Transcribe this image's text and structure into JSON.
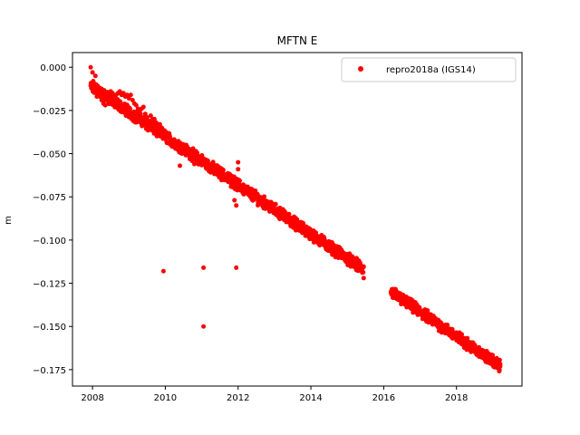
{
  "chart_data": {
    "type": "scatter",
    "title": "MFTN E",
    "xlabel": "",
    "ylabel": "m",
    "xlim": [
      2007.45,
      2019.8
    ],
    "ylim": [
      -0.1845,
      0.0085
    ],
    "xticks": [
      2008,
      2010,
      2012,
      2014,
      2016,
      2018
    ],
    "yticks": [
      0.0,
      -0.025,
      -0.05,
      -0.075,
      -0.1,
      -0.125,
      -0.15,
      -0.175
    ],
    "ytick_labels": [
      "0.000",
      "−0.025",
      "−0.050",
      "−0.075",
      "−0.100",
      "−0.125",
      "−0.150",
      "−0.175"
    ],
    "grid": false,
    "legend_position": "top-right",
    "colors": {
      "series": "#ff0000",
      "axes": "#000000",
      "background": "#ffffff"
    },
    "series": [
      {
        "name": "repro2018a (IGS14)",
        "trend_segments": [
          {
            "x_start": 2007.95,
            "x_end": 2015.45,
            "y_start": -0.011,
            "y_end": -0.117
          },
          {
            "x_start": 2016.2,
            "x_end": 2019.2,
            "y_start": -0.13,
            "y_end": -0.173
          }
        ],
        "points": [
          [
            2007.95,
            0.0
          ],
          [
            2007.98,
            -0.01
          ],
          [
            2008.0,
            -0.013
          ],
          [
            2008.02,
            -0.008
          ],
          [
            2008.05,
            -0.012
          ],
          [
            2008.08,
            -0.005
          ],
          [
            2008.1,
            -0.01
          ],
          [
            2008.12,
            -0.017
          ],
          [
            2008.15,
            -0.011
          ],
          [
            2008.18,
            -0.015
          ],
          [
            2008.2,
            -0.013
          ],
          [
            2008.25,
            -0.019
          ],
          [
            2008.3,
            -0.021
          ],
          [
            2008.35,
            -0.022
          ],
          [
            2008.4,
            -0.019
          ],
          [
            2008.45,
            -0.02
          ],
          [
            2008.5,
            -0.014
          ],
          [
            2008.55,
            -0.015
          ],
          [
            2008.6,
            -0.017
          ],
          [
            2008.65,
            -0.016
          ],
          [
            2008.7,
            -0.015
          ],
          [
            2008.75,
            -0.014
          ],
          [
            2008.8,
            -0.016
          ],
          [
            2008.85,
            -0.015
          ],
          [
            2008.9,
            -0.017
          ],
          [
            2008.95,
            -0.016
          ],
          [
            2009.0,
            -0.018
          ],
          [
            2009.05,
            -0.016
          ],
          [
            2009.1,
            -0.019
          ],
          [
            2009.15,
            -0.021
          ],
          [
            2009.2,
            -0.022
          ],
          [
            2009.25,
            -0.024
          ],
          [
            2009.3,
            -0.025
          ],
          [
            2009.35,
            -0.024
          ],
          [
            2009.4,
            -0.023
          ],
          [
            2009.45,
            -0.027
          ],
          [
            2009.5,
            -0.029
          ],
          [
            2009.55,
            -0.031
          ],
          [
            2009.6,
            -0.028
          ],
          [
            2009.65,
            -0.03
          ],
          [
            2009.7,
            -0.03
          ],
          [
            2009.75,
            -0.032
          ],
          [
            2009.8,
            -0.034
          ],
          [
            2009.85,
            -0.033
          ],
          [
            2009.9,
            -0.035
          ],
          [
            2009.95,
            -0.037
          ],
          [
            2010.0,
            -0.038
          ],
          [
            2010.05,
            -0.04
          ],
          [
            2010.1,
            -0.039
          ],
          [
            2010.15,
            -0.043
          ],
          [
            2010.2,
            -0.044
          ],
          [
            2010.3,
            -0.045
          ],
          [
            2010.4,
            -0.046
          ],
          [
            2010.5,
            -0.047
          ],
          [
            2010.6,
            -0.049
          ],
          [
            2010.7,
            -0.052
          ],
          [
            2010.8,
            -0.053
          ],
          [
            2010.9,
            -0.054
          ],
          [
            2011.0,
            -0.055
          ],
          [
            2011.1,
            -0.056
          ],
          [
            2011.2,
            -0.058
          ],
          [
            2011.3,
            -0.06
          ],
          [
            2011.4,
            -0.061
          ],
          [
            2011.5,
            -0.062
          ],
          [
            2011.6,
            -0.062
          ],
          [
            2011.7,
            -0.064
          ],
          [
            2011.8,
            -0.065
          ],
          [
            2011.9,
            -0.066
          ],
          [
            2012.0,
            -0.068
          ],
          [
            2012.1,
            -0.07
          ],
          [
            2012.2,
            -0.071
          ],
          [
            2012.3,
            -0.073
          ],
          [
            2012.4,
            -0.075
          ],
          [
            2012.5,
            -0.076
          ],
          [
            2012.6,
            -0.077
          ],
          [
            2012.7,
            -0.078
          ],
          [
            2012.8,
            -0.08
          ],
          [
            2012.9,
            -0.081
          ],
          [
            2013.0,
            -0.083
          ],
          [
            2013.1,
            -0.084
          ],
          [
            2013.2,
            -0.086
          ],
          [
            2013.3,
            -0.087
          ],
          [
            2013.4,
            -0.089
          ],
          [
            2013.5,
            -0.09
          ],
          [
            2013.6,
            -0.091
          ],
          [
            2013.7,
            -0.093
          ],
          [
            2013.8,
            -0.094
          ],
          [
            2013.9,
            -0.095
          ],
          [
            2014.0,
            -0.097
          ],
          [
            2014.1,
            -0.098
          ],
          [
            2014.2,
            -0.1
          ],
          [
            2014.3,
            -0.101
          ],
          [
            2014.4,
            -0.103
          ],
          [
            2014.5,
            -0.104
          ],
          [
            2014.6,
            -0.106
          ],
          [
            2014.7,
            -0.107
          ],
          [
            2014.8,
            -0.109
          ],
          [
            2014.9,
            -0.11
          ],
          [
            2015.0,
            -0.112
          ],
          [
            2015.1,
            -0.113
          ],
          [
            2015.2,
            -0.115
          ],
          [
            2015.3,
            -0.116
          ],
          [
            2015.4,
            -0.117
          ],
          [
            2016.2,
            -0.13
          ],
          [
            2016.4,
            -0.133
          ],
          [
            2016.6,
            -0.136
          ],
          [
            2016.8,
            -0.139
          ],
          [
            2017.0,
            -0.142
          ],
          [
            2017.2,
            -0.145
          ],
          [
            2017.4,
            -0.148
          ],
          [
            2017.6,
            -0.151
          ],
          [
            2017.8,
            -0.155
          ],
          [
            2018.0,
            -0.158
          ],
          [
            2018.2,
            -0.161
          ],
          [
            2018.4,
            -0.164
          ],
          [
            2018.6,
            -0.166
          ],
          [
            2018.8,
            -0.169
          ],
          [
            2019.0,
            -0.171
          ],
          [
            2019.2,
            -0.173
          ]
        ],
        "outliers": [
          [
            2008.0,
            -0.003
          ],
          [
            2009.3,
            -0.031
          ],
          [
            2010.4,
            -0.057
          ],
          [
            2010.8,
            -0.056
          ],
          [
            2011.8,
            -0.064
          ],
          [
            2012.0,
            -0.055
          ],
          [
            2012.0,
            -0.059
          ],
          [
            2011.9,
            -0.077
          ],
          [
            2011.95,
            -0.08
          ],
          [
            2015.45,
            -0.122
          ],
          [
            2009.95,
            -0.118
          ],
          [
            2011.05,
            -0.116
          ],
          [
            2011.95,
            -0.116
          ],
          [
            2011.05,
            -0.15
          ]
        ]
      }
    ]
  }
}
